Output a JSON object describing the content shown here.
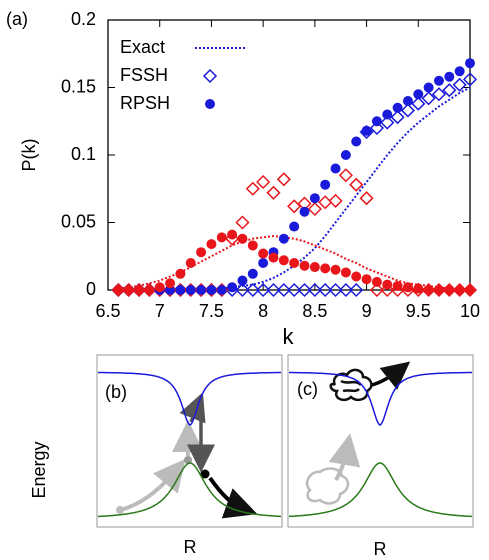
{
  "chart_data": {
    "type": "scatter",
    "panel_label": "(a)",
    "xlabel": "k",
    "ylabel": "P(k)",
    "xlim": [
      6.5,
      10
    ],
    "xticks": [
      6.5,
      7,
      7.5,
      8,
      8.5,
      9,
      9.5,
      10
    ],
    "ylim": [
      0,
      0.2
    ],
    "yticks": [
      0,
      0.05,
      0.1,
      0.15,
      0.2
    ],
    "x": [
      6.6,
      6.7,
      6.8,
      6.9,
      7.0,
      7.1,
      7.2,
      7.3,
      7.4,
      7.5,
      7.6,
      7.7,
      7.8,
      7.9,
      8.0,
      8.1,
      8.2,
      8.3,
      8.4,
      8.5,
      8.6,
      8.7,
      8.8,
      8.9,
      9.0,
      9.1,
      9.2,
      9.3,
      9.4,
      9.5,
      9.6,
      9.7,
      9.8,
      9.9,
      10.0
    ],
    "series": [
      {
        "name": "Exact",
        "color": "#1a1adb",
        "marker": "line",
        "values": [
          0,
          0,
          0,
          0,
          0,
          0,
          0,
          0,
          0,
          0.0005,
          0.001,
          0.002,
          0.003,
          0.004,
          0.006,
          0.009,
          0.013,
          0.018,
          0.024,
          0.031,
          0.04,
          0.05,
          0.06,
          0.07,
          0.08,
          0.09,
          0.1,
          0.109,
          0.117,
          0.124,
          0.13,
          0.136,
          0.141,
          0.146,
          0.15
        ]
      },
      {
        "color": "#e8161b",
        "marker": "line",
        "values": [
          0.001,
          0.002,
          0.003,
          0.005,
          0.007,
          0.01,
          0.013,
          0.017,
          0.021,
          0.025,
          0.029,
          0.033,
          0.036,
          0.038,
          0.039,
          0.04,
          0.039,
          0.038,
          0.036,
          0.033,
          0.03,
          0.027,
          0.023,
          0.02,
          0.016,
          0.013,
          0.01,
          0.007,
          0.005,
          0.004,
          0.003,
          0.002,
          0.001,
          0.001,
          0
        ]
      },
      {
        "name": "FSSH",
        "color": "#1a1adb",
        "marker": "diamond",
        "values": [
          0,
          0,
          0,
          0,
          0,
          0,
          0,
          0,
          0,
          0,
          0,
          0,
          0,
          0,
          0,
          0,
          0,
          0,
          0,
          0,
          0,
          0,
          0,
          0,
          0.117,
          0.12,
          0.124,
          0.128,
          0.133,
          0.138,
          0.142,
          0.145,
          0.148,
          0.152,
          0.156
        ]
      },
      {
        "color": "#e8161b",
        "marker": "diamond",
        "values": [
          0,
          0,
          0,
          0,
          0,
          0,
          0,
          0,
          0,
          0,
          0,
          0.038,
          0.05,
          0.075,
          0.08,
          0.072,
          0.082,
          0.062,
          0.064,
          0.06,
          0.065,
          0.066,
          0.085,
          0.078,
          0.068,
          0,
          0,
          0,
          0,
          0,
          0,
          0,
          0,
          0,
          0
        ]
      },
      {
        "name": "RPSH",
        "color": "#1a1adb",
        "marker": "circle",
        "values": [
          0,
          0,
          0,
          0,
          0,
          0,
          0,
          0,
          0,
          0,
          0,
          0.002,
          0.007,
          0.012,
          0.02,
          0.028,
          0.038,
          0.047,
          0.058,
          0.068,
          0.078,
          0.09,
          0.1,
          0.11,
          0.118,
          0.125,
          0.13,
          0.135,
          0.14,
          0.145,
          0.15,
          0.155,
          0.158,
          0.162,
          0.168
        ]
      },
      {
        "color": "#e8161b",
        "marker": "circle",
        "values": [
          0,
          0,
          0,
          0,
          0.002,
          0.005,
          0.012,
          0.02,
          0.028,
          0.034,
          0.039,
          0.041,
          0.038,
          0.033,
          0.027,
          0.024,
          0.022,
          0.02,
          0.018,
          0.017,
          0.016,
          0.015,
          0.013,
          0.01,
          0.008,
          0.006,
          0.004,
          0.003,
          0.002,
          0.001,
          0,
          0,
          0,
          0,
          0
        ]
      }
    ]
  },
  "diagrams": {
    "ylabel": "Energy",
    "panels": [
      {
        "label": "(b)",
        "xlabel": "R"
      },
      {
        "label": "(c)",
        "xlabel": "R"
      }
    ]
  }
}
